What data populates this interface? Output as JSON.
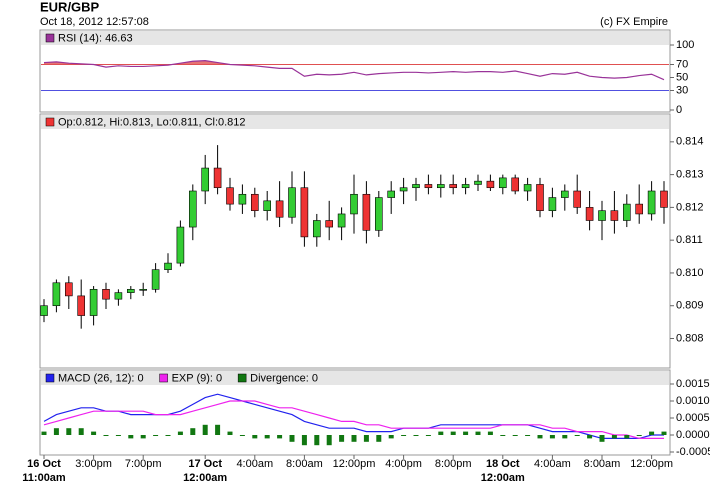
{
  "header": {
    "title": "EUR/GBP",
    "timestamp": "Oct 18, 2012 12:57:08",
    "copyright": "(c) FX Empire"
  },
  "chart_data": [
    {
      "type": "line",
      "series": [
        {
          "name": "RSI (14): 46.63",
          "color": "#993399",
          "values": [
            73,
            74,
            72,
            71,
            70,
            66,
            68,
            67,
            67,
            68,
            69,
            72,
            75,
            76,
            73,
            70,
            69,
            68,
            66,
            64,
            64,
            52,
            55,
            54,
            55,
            58,
            54,
            56,
            57,
            58,
            58,
            57,
            58,
            59,
            58,
            59,
            59,
            58,
            60,
            56,
            52,
            56,
            55,
            58,
            52,
            50,
            49,
            50,
            53,
            55,
            46.63
          ]
        }
      ],
      "ylim": [
        0,
        100
      ],
      "yticks": [
        100,
        70,
        50,
        30,
        0
      ],
      "reference_lines": [
        {
          "value": 70,
          "color": "#e05050"
        },
        {
          "value": 30,
          "color": "#5050e0"
        }
      ],
      "overbought_fill": "#e05050"
    },
    {
      "type": "candlestick",
      "legend": "Op:0.812, Hi:0.813, Lo:0.811, Cl:0.812",
      "legend_color": "#ee3333",
      "up_color": "#33cc33",
      "down_color": "#ee3333",
      "open": [
        0.8087,
        0.809,
        0.8097,
        0.8093,
        0.8087,
        0.8095,
        0.8092,
        0.8094,
        0.8095,
        0.8095,
        0.8101,
        0.8103,
        0.8114,
        0.8125,
        0.8132,
        0.8126,
        0.8121,
        0.8124,
        0.8119,
        0.8122,
        0.8117,
        0.8126,
        0.8111,
        0.8116,
        0.8114,
        0.8118,
        0.8124,
        0.8113,
        0.8123,
        0.8125,
        0.8126,
        0.8127,
        0.8126,
        0.8127,
        0.8126,
        0.8127,
        0.8128,
        0.8126,
        0.8129,
        0.8125,
        0.8127,
        0.8119,
        0.8123,
        0.8125,
        0.812,
        0.8116,
        0.8119,
        0.8116,
        0.8121,
        0.8118,
        0.8125
      ],
      "high": [
        0.8092,
        0.8098,
        0.8099,
        0.8098,
        0.8096,
        0.8097,
        0.8095,
        0.8096,
        0.8097,
        0.8103,
        0.8106,
        0.8116,
        0.8127,
        0.8136,
        0.8139,
        0.8129,
        0.8127,
        0.8126,
        0.8125,
        0.8128,
        0.8131,
        0.8131,
        0.8118,
        0.8122,
        0.812,
        0.813,
        0.8128,
        0.8125,
        0.8128,
        0.8129,
        0.8129,
        0.813,
        0.813,
        0.813,
        0.8129,
        0.813,
        0.813,
        0.813,
        0.813,
        0.8129,
        0.8129,
        0.8126,
        0.8127,
        0.813,
        0.8125,
        0.8122,
        0.8125,
        0.8124,
        0.8127,
        0.8128,
        0.8128
      ],
      "low": [
        0.8085,
        0.8088,
        0.8089,
        0.8083,
        0.8084,
        0.8089,
        0.809,
        0.8092,
        0.8093,
        0.8094,
        0.81,
        0.8102,
        0.811,
        0.8121,
        0.8124,
        0.8119,
        0.8118,
        0.8117,
        0.8116,
        0.8114,
        0.8115,
        0.8108,
        0.8108,
        0.811,
        0.811,
        0.8112,
        0.8109,
        0.8111,
        0.8118,
        0.8121,
        0.8122,
        0.8124,
        0.8123,
        0.8124,
        0.8124,
        0.8125,
        0.8125,
        0.8124,
        0.8124,
        0.8122,
        0.8117,
        0.8117,
        0.8119,
        0.8118,
        0.8113,
        0.811,
        0.8112,
        0.8114,
        0.8115,
        0.8116,
        0.8115
      ],
      "close": [
        0.809,
        0.8097,
        0.8093,
        0.8087,
        0.8095,
        0.8092,
        0.8094,
        0.8095,
        0.8095,
        0.8101,
        0.8103,
        0.8114,
        0.8125,
        0.8132,
        0.8126,
        0.8121,
        0.8124,
        0.8119,
        0.8122,
        0.8117,
        0.8126,
        0.8111,
        0.8116,
        0.8114,
        0.8118,
        0.8124,
        0.8113,
        0.8123,
        0.8125,
        0.8126,
        0.8127,
        0.8126,
        0.8127,
        0.8126,
        0.8127,
        0.8128,
        0.8126,
        0.8129,
        0.8125,
        0.8127,
        0.8119,
        0.8123,
        0.8125,
        0.812,
        0.8116,
        0.8119,
        0.8116,
        0.8121,
        0.8118,
        0.8125,
        0.812
      ],
      "ylim": [
        0.8071,
        0.8143
      ],
      "yticks": [
        0.814,
        0.813,
        0.812,
        0.811,
        {
          "value": 0.81,
          "label": "0.810"
        },
        0.809,
        0.808
      ]
    },
    {
      "type": "combo",
      "categories": [
        "11:00am",
        null,
        null,
        null,
        "3:00pm",
        null,
        null,
        null,
        "7:00pm",
        null,
        null,
        null,
        null,
        "12:00am",
        null,
        null,
        null,
        "4:00am",
        null,
        null,
        null,
        "8:00am",
        null,
        null,
        null,
        "12:00pm",
        null,
        null,
        null,
        "4:00pm",
        null,
        null,
        null,
        "8:00pm",
        null,
        null,
        null,
        "12:00am",
        null,
        null,
        null,
        "4:00am",
        null,
        null,
        null,
        "8:00am",
        null,
        null,
        null,
        "12:00pm",
        null
      ],
      "day_labels": [
        "16 Oct",
        null,
        null,
        null,
        null,
        null,
        null,
        null,
        null,
        null,
        null,
        null,
        null,
        "17 Oct",
        null,
        null,
        null,
        null,
        null,
        null,
        null,
        null,
        null,
        null,
        null,
        null,
        null,
        null,
        null,
        null,
        null,
        null,
        null,
        null,
        null,
        null,
        null,
        "18 Oct",
        null,
        null,
        null,
        null,
        null,
        null,
        null,
        null,
        null,
        null,
        null,
        null,
        null
      ],
      "series": [
        {
          "name": "MACD (26, 12): 0",
          "color": "#2222ee",
          "type": "line",
          "values": [
            0.0004,
            0.0006,
            0.0007,
            0.0008,
            0.0008,
            0.0007,
            0.0007,
            0.0006,
            0.0006,
            0.0006,
            0.0006,
            0.0007,
            0.0009,
            0.0011,
            0.0012,
            0.0011,
            0.001,
            0.0009,
            0.0008,
            0.0007,
            0.0006,
            0.0004,
            0.0003,
            0.0002,
            0.0002,
            0.0002,
            0.0001,
            0.0001,
            0.0001,
            0.0002,
            0.0002,
            0.0002,
            0.0003,
            0.0003,
            0.0003,
            0.0003,
            0.0003,
            0.0003,
            0.0003,
            0.0003,
            0.0002,
            0.0001,
            0.0001,
            0.0001,
            0,
            -0.0001,
            -0.0001,
            -0.0001,
            -0.0001,
            0,
            0
          ]
        },
        {
          "name": "EXP (9): 0",
          "color": "#ee22ee",
          "type": "line",
          "values": [
            0.0003,
            0.0004,
            0.0005,
            0.0006,
            0.0007,
            0.0007,
            0.0007,
            0.0007,
            0.0007,
            0.0006,
            0.0006,
            0.0006,
            0.0007,
            0.0008,
            0.0009,
            0.001,
            0.001,
            0.001,
            0.0009,
            0.0008,
            0.0008,
            0.0007,
            0.0006,
            0.0005,
            0.0004,
            0.0004,
            0.0003,
            0.0003,
            0.0002,
            0.0002,
            0.0002,
            0.0002,
            0.0002,
            0.0002,
            0.0002,
            0.0002,
            0.0002,
            0.0003,
            0.0003,
            0.0003,
            0.0003,
            0.0002,
            0.0002,
            0.0001,
            0.0001,
            0.0001,
            0,
            0,
            -0.0001,
            -0.0001,
            -0.0001
          ]
        },
        {
          "name": "Divergence: 0",
          "color": "#117711",
          "type": "bar",
          "values": [
            0.0001,
            0.0002,
            0.0002,
            0.0002,
            0.0001,
            0,
            0,
            -0.0001,
            -0.0001,
            0,
            0,
            0.0001,
            0.0002,
            0.0003,
            0.0003,
            0.0001,
            0,
            -0.0001,
            -0.0001,
            -0.0001,
            -0.0002,
            -0.0003,
            -0.0003,
            -0.0003,
            -0.0002,
            -0.0002,
            -0.0002,
            -0.0002,
            -0.0001,
            0,
            0,
            0,
            0.0001,
            0.0001,
            0.0001,
            0.0001,
            0.0001,
            0,
            0,
            0,
            -0.0001,
            -0.0001,
            -0.0001,
            0,
            -0.0001,
            -0.0002,
            -0.0001,
            -0.0001,
            0,
            0.0001,
            0.0001
          ]
        }
      ],
      "ylim": [
        -0.0005,
        0.0015
      ],
      "yticks": [
        0.0015,
        {
          "value": 0.001,
          "label": "0.0010"
        },
        0.0005,
        {
          "value": 0,
          "label": "0.0000"
        },
        -0.0005
      ]
    }
  ]
}
